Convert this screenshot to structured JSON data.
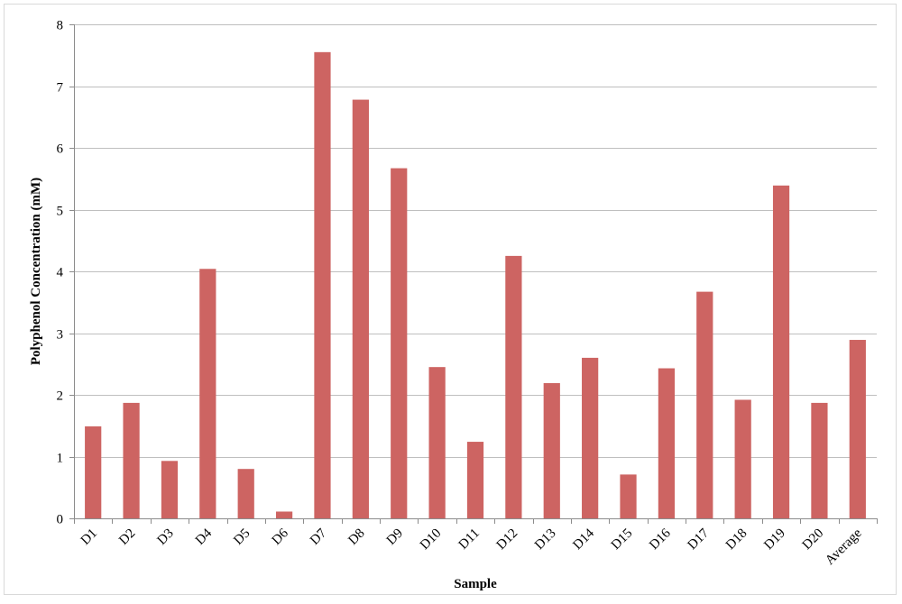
{
  "chart_data": {
    "type": "bar",
    "title": "",
    "xlabel": "Sample",
    "ylabel": "Polyphenol Concentration (mM)",
    "ylim": [
      0,
      8
    ],
    "yticks": [
      0,
      1,
      2,
      3,
      4,
      5,
      6,
      7,
      8
    ],
    "grid": true,
    "legend": "none",
    "bar_color": "#cd6462",
    "categories": [
      "D1",
      "D2",
      "D3",
      "D4",
      "D5",
      "D6",
      "D7",
      "D8",
      "D9",
      "D10",
      "D11",
      "D12",
      "D13",
      "D14",
      "D15",
      "D16",
      "D17",
      "D18",
      "D19",
      "D20",
      "Average"
    ],
    "values": [
      1.49,
      1.87,
      0.93,
      4.04,
      0.8,
      0.11,
      7.55,
      6.78,
      5.67,
      2.45,
      1.24,
      4.25,
      2.19,
      2.6,
      0.71,
      2.43,
      3.67,
      1.92,
      5.39,
      1.87,
      2.89
    ]
  }
}
